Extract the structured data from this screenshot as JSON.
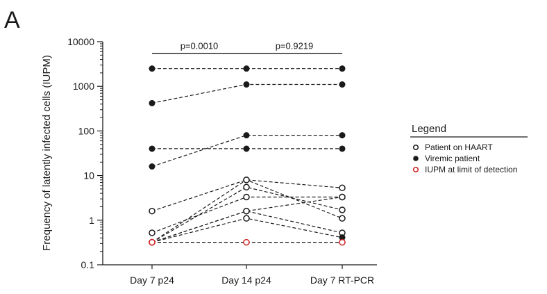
{
  "panel_label": "A",
  "colors": {
    "ink": "#1a1a1a",
    "limit": "#d02020"
  },
  "chart_data": {
    "type": "scatter",
    "title": "",
    "ylabel": "Frequency of latently infected cells (IUPM)",
    "xlabel": "",
    "categories": [
      "Day 7 p24",
      "Day 14 p24",
      "Day 7 RT-PCR"
    ],
    "yscale": "log",
    "ylim": [
      0.1,
      10000
    ],
    "y_ticks": [
      {
        "value": 0.1,
        "label": "0.1"
      },
      {
        "value": 1,
        "label": "1"
      },
      {
        "value": 10,
        "label": "10"
      },
      {
        "value": 100,
        "label": "100"
      },
      {
        "value": 1000,
        "label": "1000"
      },
      {
        "value": 10000,
        "label": "10000"
      }
    ],
    "grid": false,
    "marker_types": [
      "hollow",
      "filled",
      "limit"
    ],
    "lines": [
      {
        "values": [
          2500,
          2500,
          2500
        ],
        "markers": [
          "filled",
          "filled",
          "filled"
        ]
      },
      {
        "values": [
          420,
          1100,
          1100
        ],
        "markers": [
          "filled",
          "filled",
          "filled"
        ]
      },
      {
        "values": [
          40,
          40,
          40
        ],
        "markers": [
          "filled",
          "filled",
          "filled"
        ]
      },
      {
        "values": [
          16,
          80,
          80
        ],
        "markers": [
          "filled",
          "filled",
          "filled"
        ]
      },
      {
        "values": [
          1.6,
          8,
          5.3
        ],
        "markers": [
          "hollow",
          "hollow",
          "hollow"
        ]
      },
      {
        "values": [
          0.52,
          3.3,
          3.3
        ],
        "markers": [
          "hollow",
          "hollow",
          "hollow"
        ]
      },
      {
        "values": [
          0.32,
          8,
          1.1
        ],
        "markers": [
          "limit",
          "hollow",
          "hollow"
        ]
      },
      {
        "values": [
          0.32,
          5.5,
          1.7
        ],
        "markers": [
          "limit",
          "hollow",
          "hollow"
        ]
      },
      {
        "values": [
          0.32,
          1.6,
          3.3
        ],
        "markers": [
          "limit",
          "hollow",
          "hollow"
        ]
      },
      {
        "values": [
          0.32,
          1.6,
          0.52
        ],
        "markers": [
          "limit",
          "hollow",
          "hollow"
        ]
      },
      {
        "values": [
          0.32,
          1.1,
          0.41
        ],
        "markers": [
          "limit",
          "hollow",
          "filled"
        ]
      },
      {
        "values": [
          0.32,
          0.32,
          0.32
        ],
        "markers": [
          "limit",
          "limit",
          "limit"
        ]
      }
    ],
    "significance": [
      {
        "from": 0,
        "to": 1,
        "y": 5500,
        "label": "p=0.0010"
      },
      {
        "from": 1,
        "to": 2,
        "y": 5500,
        "label": "p=0.9219"
      }
    ],
    "legend": {
      "position": "right",
      "title": "Legend",
      "entries": [
        {
          "label": "Patient on HAART",
          "marker": "hollow"
        },
        {
          "label": "Viremic patient",
          "marker": "filled"
        },
        {
          "label": "IUPM at limit of detection",
          "marker": "limit"
        }
      ]
    }
  }
}
